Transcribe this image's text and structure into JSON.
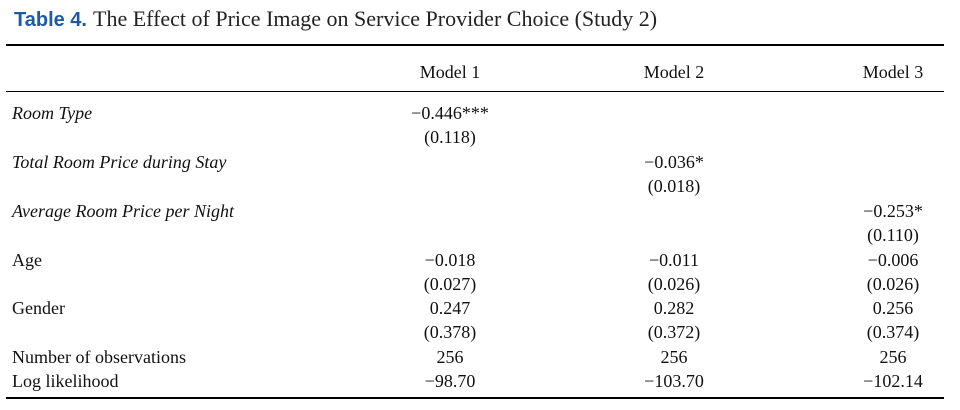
{
  "caption": {
    "label": "Table 4.",
    "title": "The Effect of Price Image on Service Provider Choice (Study 2)"
  },
  "columns": [
    "Model 1",
    "Model 2",
    "Model 3"
  ],
  "rows": [
    {
      "label": "Room Type",
      "m1": "−0.446***",
      "m1_se": "(0.118)",
      "m2": "",
      "m2_se": "",
      "m3": "",
      "m3_se": ""
    },
    {
      "label": "Total Room Price during Stay",
      "m1": "",
      "m1_se": "",
      "m2": "−0.036*",
      "m2_se": "(0.018)",
      "m3": "",
      "m3_se": ""
    },
    {
      "label": "Average Room Price per Night",
      "m1": "",
      "m1_se": "",
      "m2": "",
      "m2_se": "",
      "m3": "−0.253*",
      "m3_se": "(0.110)"
    },
    {
      "label": "Age",
      "m1": "−0.018",
      "m1_se": "(0.027)",
      "m2": "−0.011",
      "m2_se": "(0.026)",
      "m3": "−0.006",
      "m3_se": "(0.026)"
    },
    {
      "label": "Gender",
      "m1": "0.247",
      "m1_se": "(0.378)",
      "m2": "0.282",
      "m2_se": "(0.372)",
      "m3": "0.256",
      "m3_se": "(0.374)"
    },
    {
      "label": "Number of observations",
      "m1": "256",
      "m2": "256",
      "m3": "256"
    },
    {
      "label": "Log likelihood",
      "m1": "−98.70",
      "m2": "−103.70",
      "m3": "−102.14"
    }
  ]
}
